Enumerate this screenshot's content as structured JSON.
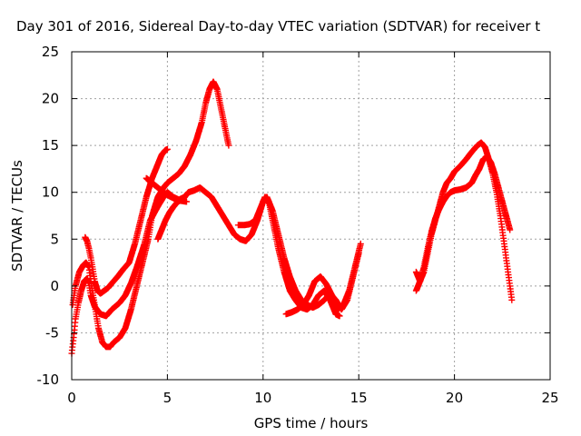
{
  "chart_data": {
    "type": "scatter",
    "title": "Day 301 of 2016, Sidereal Day-to-day VTEC variation (SDTVAR) for receiver t",
    "xlabel": "GPS time / hours",
    "ylabel": "SDTVAR / TECUs",
    "xlim": [
      0,
      25
    ],
    "ylim": [
      -10,
      25
    ],
    "xticks": [
      "0",
      "5",
      "10",
      "15",
      "20",
      "25"
    ],
    "yticks": [
      "-10",
      "-5",
      "0",
      "5",
      "10",
      "15",
      "20",
      "25"
    ],
    "grid": true,
    "marker": "+",
    "series": [
      {
        "color": "#ff0000",
        "x": [
          0.0,
          0.1,
          0.2,
          0.35,
          0.5,
          0.65,
          0.8,
          0.9,
          1.0,
          1.2,
          1.5,
          1.8,
          2.1,
          2.5,
          2.8,
          3.1,
          3.4,
          3.8,
          4.1,
          4.5,
          4.8,
          5.0,
          5.3,
          5.6,
          5.9,
          6.1,
          6.4,
          6.7,
          7.0,
          7.3,
          7.6,
          7.9,
          8.2,
          8.5,
          8.8,
          9.1,
          9.4,
          9.7,
          10.0,
          10.2,
          10.5,
          10.8,
          11.1,
          11.4,
          11.7,
          12.0,
          12.3,
          12.6,
          12.9,
          13.2,
          13.5,
          13.8,
          14.1,
          14.4,
          14.7,
          15.0
        ],
        "y": [
          -7.2,
          -5.5,
          -3.5,
          -1.8,
          -0.5,
          0.5,
          0.8,
          0.3,
          -1.0,
          -2.2,
          -3.0,
          -3.2,
          -2.5,
          -1.8,
          -1.0,
          0.3,
          2.0,
          4.5,
          7.0,
          8.5,
          9.5,
          10.0,
          9.5,
          9.2,
          9.5,
          10.0,
          10.2,
          10.5,
          10.0,
          9.5,
          8.5,
          7.5,
          6.5,
          5.5,
          5.0,
          4.8,
          5.5,
          7.0,
          9.0,
          9.5,
          8.0,
          5.5,
          3.0,
          1.0,
          -0.5,
          -1.5,
          -2.0,
          -2.3,
          -2.0,
          -1.5,
          -0.8,
          -1.5,
          -2.5,
          -1.5,
          1.0,
          3.5
        ]
      },
      {
        "color": "#ff0000",
        "x": [
          0.05,
          0.2,
          0.4,
          0.6,
          0.75,
          0.9,
          1.0,
          1.2,
          1.4,
          1.6,
          1.8,
          2.0,
          2.2,
          2.5,
          2.8,
          3.1,
          3.4,
          3.7,
          4.0,
          4.2,
          4.5,
          4.8,
          5.0,
          5.3,
          5.6,
          5.9,
          6.2,
          6.5,
          6.8,
          7.0,
          7.2,
          7.4,
          7.6,
          7.8,
          8.0,
          8.2
        ],
        "y": [
          -2.0,
          0.0,
          1.5,
          2.2,
          2.5,
          2.0,
          0.5,
          -2.0,
          -4.5,
          -6.0,
          -6.5,
          -6.5,
          -6.0,
          -5.5,
          -4.5,
          -2.5,
          0.0,
          2.5,
          5.0,
          7.5,
          9.5,
          10.5,
          11.0,
          11.5,
          12.0,
          12.8,
          14.0,
          15.5,
          17.5,
          19.5,
          21.0,
          21.8,
          21.0,
          19.0,
          17.0,
          15.0
        ]
      },
      {
        "color": "#ff0000",
        "x": [
          0.7,
          0.8,
          0.9,
          1.0,
          1.1,
          1.2,
          1.35,
          1.5,
          1.7,
          1.9,
          2.1,
          2.4,
          2.7,
          3.0,
          3.3,
          3.6,
          3.9,
          4.2,
          4.5,
          4.7,
          4.9,
          5.0
        ],
        "y": [
          5.2,
          4.8,
          4.0,
          3.0,
          1.8,
          0.5,
          -0.5,
          -0.8,
          -0.5,
          -0.2,
          0.3,
          1.0,
          1.8,
          2.5,
          4.5,
          7.0,
          9.5,
          11.5,
          13.0,
          14.0,
          14.5,
          14.6
        ]
      },
      {
        "color": "#ff0000",
        "x": [
          3.9,
          4.2,
          4.5,
          4.8,
          5.1,
          5.4,
          5.7,
          6.0
        ],
        "y": [
          11.5,
          11.0,
          10.5,
          10.0,
          9.6,
          9.3,
          9.1,
          9.0
        ]
      },
      {
        "color": "#ff0000",
        "x": [
          4.5,
          4.7,
          4.9,
          5.1,
          5.3,
          5.5,
          5.7,
          5.9
        ],
        "y": [
          5.0,
          6.0,
          7.0,
          7.8,
          8.4,
          8.9,
          9.2,
          9.5
        ]
      },
      {
        "color": "#ff0000",
        "x": [
          8.7,
          9.0,
          9.3,
          9.6,
          9.9,
          10.1,
          10.3,
          10.5,
          10.8,
          11.1,
          11.4,
          11.7,
          12.0,
          12.3,
          12.6,
          12.9,
          13.2,
          13.5,
          13.8,
          14.0
        ],
        "y": [
          6.5,
          6.5,
          6.6,
          7.0,
          8.5,
          9.5,
          9.0,
          7.0,
          4.0,
          1.5,
          -0.5,
          -1.5,
          -2.3,
          -2.5,
          -2.0,
          -1.0,
          -0.5,
          -1.5,
          -3.0,
          -3.2
        ]
      },
      {
        "color": "#ff0000",
        "x": [
          11.2,
          11.5,
          11.8,
          12.1,
          12.4,
          12.7,
          13.0,
          13.3,
          13.6,
          13.9,
          14.2,
          14.5,
          14.8,
          15.1
        ],
        "y": [
          -3.0,
          -2.8,
          -2.5,
          -2.0,
          -1.0,
          0.5,
          1.0,
          0.2,
          -1.0,
          -2.5,
          -2.0,
          -0.5,
          2.0,
          4.5
        ]
      },
      {
        "color": "#ff0000",
        "x": [
          18.0,
          18.2,
          18.4,
          18.6,
          18.8,
          19.0,
          19.2,
          19.4,
          19.6,
          19.8,
          20.0,
          20.3,
          20.6,
          20.9,
          21.1,
          21.3,
          21.5,
          21.7,
          21.9,
          22.1,
          22.3,
          22.5,
          22.7,
          22.9
        ],
        "y": [
          -0.5,
          0.5,
          2.0,
          4.0,
          5.8,
          7.2,
          8.2,
          9.0,
          9.6,
          10.0,
          10.2,
          10.3,
          10.5,
          11.0,
          11.8,
          12.5,
          13.5,
          13.8,
          13.2,
          12.0,
          10.5,
          9.0,
          7.5,
          6.0
        ]
      },
      {
        "color": "#ff0000",
        "x": [
          18.0,
          18.2,
          18.4,
          18.6,
          18.8,
          19.0,
          19.2,
          19.4,
          19.6,
          19.8,
          20.0,
          20.3,
          20.6,
          20.9,
          21.2,
          21.4,
          21.6,
          21.8,
          22.0,
          22.2,
          22.4,
          22.6,
          22.8,
          23.0
        ],
        "y": [
          1.5,
          0.5,
          1.5,
          3.5,
          5.5,
          7.0,
          8.5,
          10.0,
          11.0,
          11.5,
          12.2,
          12.8,
          13.5,
          14.3,
          15.0,
          15.3,
          14.8,
          13.5,
          12.0,
          10.0,
          7.5,
          4.5,
          1.5,
          -1.5
        ]
      }
    ]
  }
}
